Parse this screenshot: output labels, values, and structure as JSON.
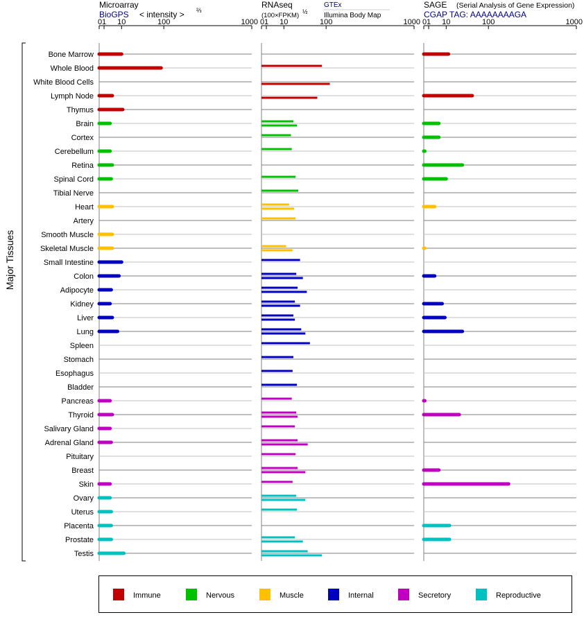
{
  "panels": [
    {
      "title": "Microarray",
      "source": "BioGPS",
      "unit": "< intensity >",
      "unit_exp": "⅔",
      "sub2": ""
    },
    {
      "title": "RNAseq",
      "source": "GTEx",
      "unit": "(100×FPKM)",
      "unit_exp": "½",
      "sub2": "Illumina Body Map"
    },
    {
      "title": "SAGE",
      "title_note": "(Serial Analysis of Gene Expression)",
      "source": "CGAP TAG: AAAAAAAAGA",
      "unit": "",
      "unit_exp": "",
      "sub2": ""
    }
  ],
  "y_axis_label": "Major Tissues",
  "tick_labels": [
    "0",
    "1",
    "10",
    "100",
    "1000"
  ],
  "legend": [
    {
      "name": "Immune",
      "color": "#c00000"
    },
    {
      "name": "Nervous",
      "color": "#00c000"
    },
    {
      "name": "Muscle",
      "color": "#ffc000"
    },
    {
      "name": "Internal",
      "color": "#0000c0"
    },
    {
      "name": "Secretory",
      "color": "#c000c0"
    },
    {
      "name": "Reproductive",
      "color": "#00c0c0"
    }
  ],
  "chart_data": {
    "type": "bar",
    "orientation": "horizontal",
    "x_scale": "power",
    "xlim": [
      0,
      1000
    ],
    "tissues": [
      {
        "name": "Bone Marrow",
        "group": "Immune",
        "microarray": 10,
        "rnaseq": [],
        "sage": 12
      },
      {
        "name": "Whole Blood",
        "group": "Immune",
        "microarray": 90,
        "rnaseq": [
          85
        ],
        "sage": null
      },
      {
        "name": "White Blood Cells",
        "group": "Immune",
        "microarray": null,
        "rnaseq": [
          115
        ],
        "sage": null
      },
      {
        "name": "Lymph Node",
        "group": "Immune",
        "microarray": 4,
        "rnaseq": [
          70
        ],
        "sage": 50
      },
      {
        "name": "Thymus",
        "group": "Immune",
        "microarray": 11,
        "rnaseq": [],
        "sage": null
      },
      {
        "name": "Brain",
        "group": "Nervous",
        "microarray": 3,
        "rnaseq": [
          20,
          25
        ],
        "sage": 5
      },
      {
        "name": "Cortex",
        "group": "Nervous",
        "microarray": null,
        "rnaseq": [
          17
        ],
        "sage": 5
      },
      {
        "name": "Cerebellum",
        "group": "Nervous",
        "microarray": 3,
        "rnaseq": [
          18
        ],
        "sage": 0.002
      },
      {
        "name": "Retina",
        "group": "Nervous",
        "microarray": 4,
        "rnaseq": [],
        "sage": 30
      },
      {
        "name": "Spinal Cord",
        "group": "Nervous",
        "microarray": 3.5,
        "rnaseq": [
          23
        ],
        "sage": 10
      },
      {
        "name": "Tibial Nerve",
        "group": "Nervous",
        "microarray": null,
        "rnaseq": [
          27
        ],
        "sage": null
      },
      {
        "name": "Heart",
        "group": "Muscle",
        "microarray": 4,
        "rnaseq": [
          15,
          21
        ],
        "sage": 3
      },
      {
        "name": "Artery",
        "group": "Muscle",
        "microarray": null,
        "rnaseq": [
          23
        ],
        "sage": null
      },
      {
        "name": "Smooth Muscle",
        "group": "Muscle",
        "microarray": 4,
        "rnaseq": [],
        "sage": null
      },
      {
        "name": "Skeletal Muscle",
        "group": "Muscle",
        "microarray": 4,
        "rnaseq": [
          12,
          19
        ],
        "sage": 0.001
      },
      {
        "name": "Small Intestine",
        "group": "Internal",
        "microarray": 10,
        "rnaseq": [
          30
        ],
        "sage": null
      },
      {
        "name": "Colon",
        "group": "Internal",
        "microarray": 8,
        "rnaseq": [
          24,
          35
        ],
        "sage": 3
      },
      {
        "name": "Adipocyte",
        "group": "Internal",
        "microarray": 3.5,
        "rnaseq": [
          26,
          43
        ],
        "sage": null
      },
      {
        "name": "Kidney",
        "group": "Internal",
        "microarray": 3,
        "rnaseq": [
          22,
          30
        ],
        "sage": 7
      },
      {
        "name": "Liver",
        "group": "Internal",
        "microarray": 4,
        "rnaseq": [
          20,
          22
        ],
        "sage": 9
      },
      {
        "name": "Lung",
        "group": "Internal",
        "microarray": 7,
        "rnaseq": [
          32,
          40
        ],
        "sage": 30
      },
      {
        "name": "Spleen",
        "group": "Internal",
        "microarray": null,
        "rnaseq": [
          50
        ],
        "sage": null
      },
      {
        "name": "Stomach",
        "group": "Internal",
        "microarray": null,
        "rnaseq": [
          20
        ],
        "sage": null
      },
      {
        "name": "Esophagus",
        "group": "Internal",
        "microarray": null,
        "rnaseq": [
          19
        ],
        "sage": null
      },
      {
        "name": "Bladder",
        "group": "Internal",
        "microarray": null,
        "rnaseq": [
          25
        ],
        "sage": null
      },
      {
        "name": "Pancreas",
        "group": "Secretory",
        "microarray": 3,
        "rnaseq": [
          18
        ],
        "sage": 0.002
      },
      {
        "name": "Thyroid",
        "group": "Secretory",
        "microarray": 4,
        "rnaseq": [
          24,
          26
        ],
        "sage": 25
      },
      {
        "name": "Salivary Gland",
        "group": "Secretory",
        "microarray": 3,
        "rnaseq": [
          22
        ],
        "sage": null
      },
      {
        "name": "Adrenal Gland",
        "group": "Secretory",
        "microarray": 3.5,
        "rnaseq": [
          26,
          45
        ],
        "sage": null
      },
      {
        "name": "Pituitary",
        "group": "Secretory",
        "microarray": null,
        "rnaseq": [
          23
        ],
        "sage": null
      },
      {
        "name": "Breast",
        "group": "Secretory",
        "microarray": null,
        "rnaseq": [
          26,
          40
        ],
        "sage": 5
      },
      {
        "name": "Skin",
        "group": "Secretory",
        "microarray": 3,
        "rnaseq": [
          19
        ],
        "sage": 200
      },
      {
        "name": "Ovary",
        "group": "Reproductive",
        "microarray": 3,
        "rnaseq": [
          24,
          40
        ],
        "sage": null
      },
      {
        "name": "Uterus",
        "group": "Reproductive",
        "microarray": 3.5,
        "rnaseq": [
          25
        ],
        "sage": null
      },
      {
        "name": "Placenta",
        "group": "Reproductive",
        "microarray": 3.5,
        "rnaseq": [],
        "sage": 13
      },
      {
        "name": "Prostate",
        "group": "Reproductive",
        "microarray": 3.5,
        "rnaseq": [
          22,
          35
        ],
        "sage": 13
      },
      {
        "name": "Testis",
        "group": "Reproductive",
        "microarray": 12,
        "rnaseq": [
          45,
          85
        ],
        "sage": null
      }
    ]
  }
}
